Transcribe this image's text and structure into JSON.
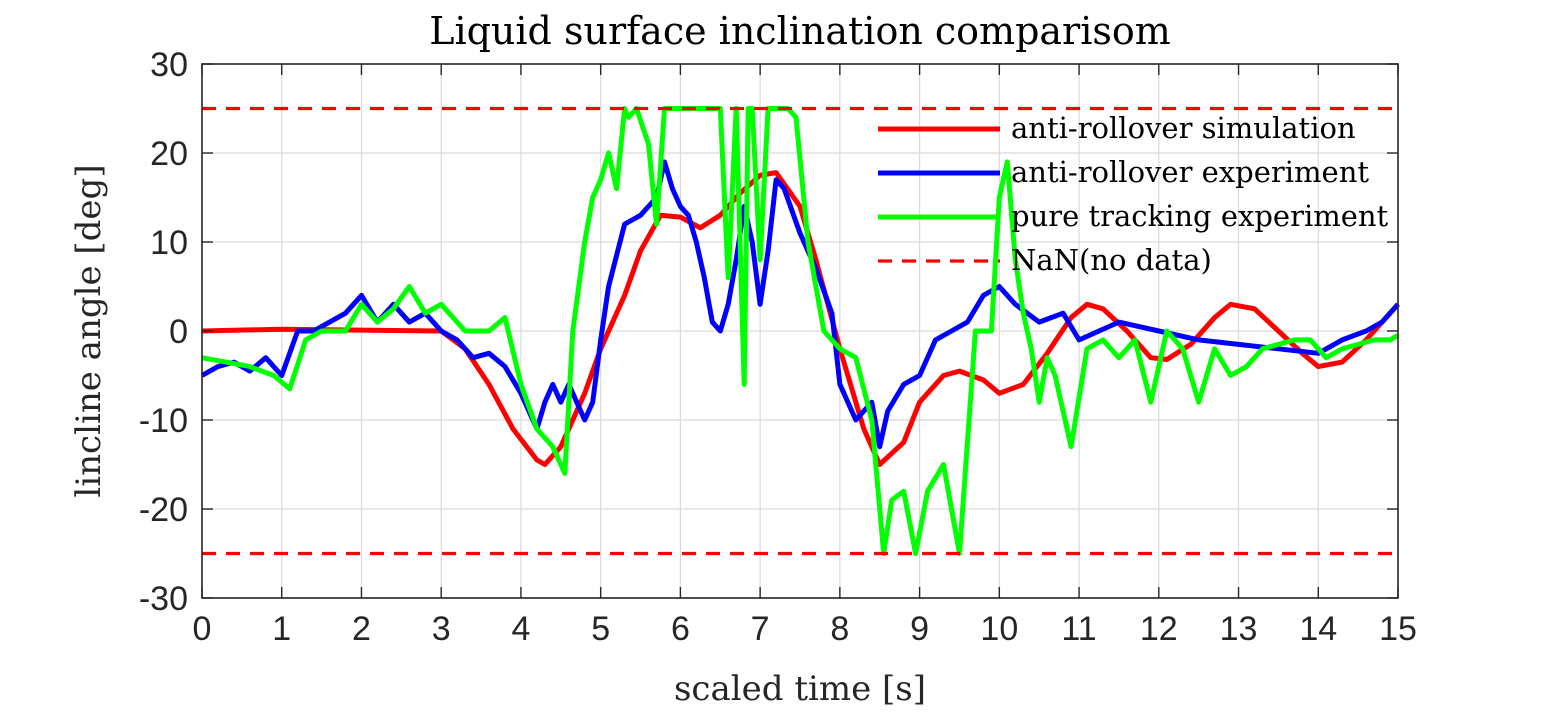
{
  "chart_data": {
    "type": "line",
    "title": "Liquid surface inclination comparisom",
    "xlabel": "scaled time [s]",
    "ylabel": "lincline angle [deg]",
    "xlim": [
      0,
      15
    ],
    "ylim": [
      -30,
      30
    ],
    "xticks": [
      0,
      1,
      2,
      3,
      4,
      5,
      6,
      7,
      8,
      9,
      10,
      11,
      12,
      13,
      14,
      15
    ],
    "yticks": [
      -30,
      -20,
      -10,
      0,
      10,
      20,
      30
    ],
    "xtick_labels": [
      "0",
      "1",
      "2",
      "3",
      "4",
      "5",
      "6",
      "7",
      "8",
      "9",
      "10",
      "11",
      "12",
      "13",
      "14",
      "15"
    ],
    "ytick_labels": [
      "-30",
      "-20",
      "-10",
      "0",
      "10",
      "20",
      "30"
    ],
    "grid": true,
    "legend_position": "top-right",
    "series": [
      {
        "name": "anti-rollover simulation",
        "color": "#ff0000",
        "style": "solid",
        "x": [
          0,
          1,
          2,
          3,
          3.3,
          3.6,
          3.9,
          4.2,
          4.3,
          4.5,
          4.8,
          5.0,
          5.3,
          5.5,
          5.75,
          6.0,
          6.25,
          6.5,
          6.75,
          7.0,
          7.2,
          7.5,
          7.7,
          8.0,
          8.3,
          8.5,
          8.8,
          9.0,
          9.3,
          9.5,
          9.8,
          10.0,
          10.3,
          10.6,
          10.9,
          11.1,
          11.3,
          11.6,
          11.9,
          12.1,
          12.4,
          12.7,
          12.9,
          13.2,
          13.5,
          13.8,
          14.0,
          14.3,
          14.6,
          15.0
        ],
        "y": [
          0,
          0.2,
          0.1,
          0,
          -2,
          -6,
          -11,
          -14.5,
          -15,
          -13,
          -7,
          -2,
          4,
          9,
          13,
          12.8,
          11.6,
          13,
          15.5,
          17.5,
          17.8,
          14,
          8,
          -2,
          -11,
          -15,
          -12.5,
          -8,
          -5,
          -4.5,
          -5.5,
          -7,
          -6,
          -2.5,
          1.5,
          3,
          2.5,
          0,
          -3,
          -3.2,
          -1.5,
          1.5,
          3,
          2.5,
          0,
          -2.5,
          -4,
          -3.5,
          -1,
          3
        ]
      },
      {
        "name": "anti-rollover experiment",
        "color": "#0000ff",
        "style": "solid",
        "x": [
          0,
          0.2,
          0.4,
          0.6,
          0.8,
          1.0,
          1.2,
          1.4,
          1.6,
          1.8,
          2.0,
          2.2,
          2.4,
          2.6,
          2.8,
          3.0,
          3.2,
          3.4,
          3.6,
          3.8,
          4.0,
          4.1,
          4.2,
          4.3,
          4.4,
          4.5,
          4.6,
          4.8,
          4.9,
          5.0,
          5.1,
          5.3,
          5.5,
          5.7,
          5.8,
          5.9,
          6.0,
          6.1,
          6.2,
          6.3,
          6.4,
          6.5,
          6.6,
          6.7,
          6.8,
          6.9,
          7.0,
          7.1,
          7.2,
          7.3,
          7.5,
          7.7,
          7.9,
          8.0,
          8.2,
          8.4,
          8.5,
          8.6,
          8.8,
          9.0,
          9.2,
          9.4,
          9.6,
          9.8,
          10.0,
          10.2,
          10.5,
          10.8,
          11.0,
          11.5,
          12.0,
          12.5,
          13.0,
          13.5,
          14.0,
          14.3,
          14.6,
          14.8,
          15.0
        ],
        "y": [
          -5,
          -4,
          -3.5,
          -4.5,
          -3,
          -5,
          0,
          0,
          1,
          2,
          4,
          1,
          3,
          1,
          2,
          0,
          -1,
          -3,
          -2.5,
          -4,
          -7,
          -9,
          -11,
          -8,
          -6,
          -8,
          -6,
          -10,
          -8,
          -1,
          5,
          12,
          13,
          15,
          19,
          16,
          14,
          13,
          10,
          6,
          1,
          0,
          3,
          8,
          14,
          10,
          3,
          9,
          17,
          16,
          11,
          7,
          2,
          -6,
          -10,
          -8,
          -13,
          -9,
          -6,
          -5,
          -1,
          0,
          1,
          4,
          5,
          3,
          1,
          2,
          -1,
          1,
          0,
          -1,
          -1.5,
          -2,
          -2.5,
          -1,
          0,
          1,
          3
        ]
      },
      {
        "name": "pure tracking experiment",
        "color": "#00ff00",
        "style": "solid",
        "x": [
          0,
          0.3,
          0.6,
          0.9,
          1.1,
          1.3,
          1.5,
          1.8,
          2.0,
          2.2,
          2.4,
          2.6,
          2.8,
          3.0,
          3.3,
          3.6,
          3.8,
          4.0,
          4.2,
          4.4,
          4.55,
          4.65,
          4.8,
          4.9,
          5.0,
          5.1,
          5.2,
          5.3,
          5.35,
          5.45,
          5.6,
          5.7,
          5.8,
          5.9,
          6.0,
          6.2,
          6.4,
          6.5,
          6.6,
          6.7,
          6.8,
          6.85,
          6.9,
          7.0,
          7.1,
          7.2,
          7.35,
          7.45,
          7.6,
          7.8,
          8.0,
          8.2,
          8.4,
          8.55,
          8.65,
          8.8,
          8.95,
          9.1,
          9.3,
          9.4,
          9.5,
          9.7,
          9.9,
          10.0,
          10.1,
          10.2,
          10.3,
          10.4,
          10.5,
          10.6,
          10.7,
          10.9,
          11.1,
          11.3,
          11.5,
          11.7,
          11.9,
          12.1,
          12.3,
          12.5,
          12.7,
          12.9,
          13.1,
          13.3,
          13.5,
          13.7,
          13.9,
          14.1,
          14.3,
          14.5,
          14.7,
          14.9,
          15.0
        ],
        "y": [
          -3,
          -3.5,
          -4,
          -5,
          -6.5,
          -1,
          0,
          0,
          3,
          1,
          2.5,
          5,
          2,
          3,
          0,
          0,
          1.5,
          -6,
          -11,
          -13,
          -16,
          0,
          10,
          15,
          17,
          20,
          16,
          25,
          24,
          25,
          21,
          12,
          25,
          25,
          25,
          25,
          25,
          25,
          6,
          25,
          -6,
          25,
          25,
          8,
          25,
          25,
          25,
          24,
          10,
          0,
          -2,
          -3,
          -10,
          -25,
          -19,
          -18,
          -25,
          -18,
          -15,
          -20,
          -25,
          0,
          0,
          15,
          19,
          8,
          2,
          -2,
          -8,
          -3,
          -5,
          -13,
          -2,
          -1,
          -3,
          -1,
          -8,
          0,
          -2,
          -8,
          -2,
          -5,
          -4,
          -2,
          -1.5,
          -1,
          -1,
          -3,
          -2,
          -1.5,
          -1,
          -1,
          -0.5
        ]
      },
      {
        "name": "NaN(no data)",
        "color": "#ff0000",
        "style": "dashed",
        "x": [
          0,
          15
        ],
        "y": [
          25,
          25
        ]
      },
      {
        "name": "",
        "color": "#ff0000",
        "style": "dashed",
        "x": [
          0,
          15
        ],
        "y": [
          -25,
          -25
        ]
      }
    ]
  }
}
